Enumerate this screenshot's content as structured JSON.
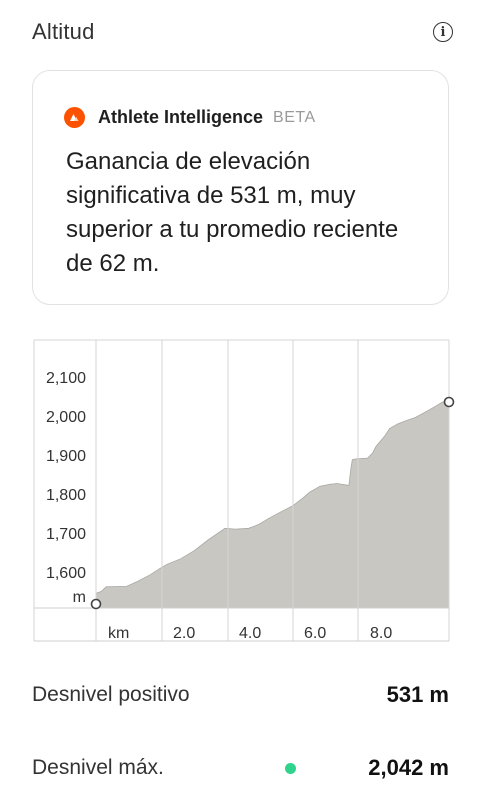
{
  "header": {
    "title": "Altitud",
    "info_icon": "info-icon"
  },
  "athlete_intelligence": {
    "name": "Athlete Intelligence",
    "badge": "BETA",
    "message": "Ganancia de elevación significativa de 531 m, muy superior a tu promedio reciente de 62 m.",
    "logo_color": "#fc5200"
  },
  "chart_data": {
    "type": "area",
    "ylabel": "m",
    "xlabel": "km",
    "y_ticks": [
      "2,100",
      "2,000",
      "1,900",
      "1,800",
      "1,700",
      "1,600"
    ],
    "x_ticks": [
      "2.0",
      "4.0",
      "6.0",
      "8.0"
    ],
    "ylim": [
      1520,
      2150
    ],
    "xlim": [
      0,
      10.4
    ],
    "grid": true,
    "fill_color": "#c8c7c2",
    "x": [
      0,
      0.15,
      0.3,
      0.9,
      1.2,
      1.6,
      1.9,
      2.1,
      2.5,
      2.9,
      3.3,
      3.6,
      3.8,
      4.1,
      4.5,
      4.8,
      5.1,
      5.4,
      5.8,
      6.1,
      6.3,
      6.6,
      6.9,
      7.1,
      7.45,
      7.5,
      7.55,
      7.65,
      8.0,
      8.15,
      8.25,
      8.5,
      8.65,
      8.9,
      9.2,
      9.4,
      9.6,
      9.8,
      10.0,
      10.2,
      10.4
    ],
    "y": [
      1545,
      1550,
      1562,
      1563,
      1575,
      1593,
      1610,
      1620,
      1634,
      1655,
      1682,
      1700,
      1712,
      1710,
      1712,
      1722,
      1738,
      1752,
      1770,
      1790,
      1805,
      1820,
      1825,
      1827,
      1822,
      1860,
      1888,
      1890,
      1892,
      1905,
      1922,
      1948,
      1968,
      1980,
      1990,
      1996,
      2005,
      2015,
      2025,
      2035,
      2040
    ],
    "start_marker": true,
    "end_marker": true
  },
  "stats": [
    {
      "label": "Desnivel positivo",
      "value": "531 m",
      "has_dot": false
    },
    {
      "label": "Desnivel máx.",
      "value": "2,042 m",
      "has_dot": true,
      "dot_color": "#2fd38b"
    }
  ]
}
